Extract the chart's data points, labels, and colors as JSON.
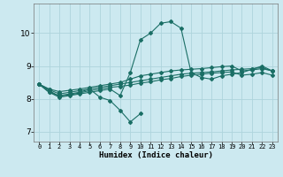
{
  "title": "",
  "xlabel": "Humidex (Indice chaleur)",
  "ylabel": "",
  "bg_color": "#cce9f0",
  "grid_color": "#aed4dc",
  "line_color": "#1a6e65",
  "xlim": [
    -0.5,
    23.5
  ],
  "ylim": [
    6.7,
    10.9
  ],
  "yticks": [
    7,
    8,
    9,
    10
  ],
  "xticks": [
    0,
    1,
    2,
    3,
    4,
    5,
    6,
    7,
    8,
    9,
    10,
    11,
    12,
    13,
    14,
    15,
    16,
    17,
    18,
    19,
    20,
    21,
    22,
    23
  ],
  "series": [
    [
      8.45,
      8.2,
      8.05,
      8.1,
      8.15,
      8.2,
      8.25,
      8.3,
      8.1,
      8.8,
      9.8,
      10.0,
      10.3,
      10.35,
      10.15,
      8.8,
      8.65,
      8.6,
      8.7,
      8.75,
      8.8,
      8.9,
      9.0,
      8.85
    ],
    [
      8.45,
      8.2,
      8.1,
      8.15,
      8.2,
      8.3,
      8.05,
      7.95,
      7.65,
      7.3,
      7.55,
      null,
      null,
      null,
      null,
      null,
      null,
      null,
      null,
      null,
      null,
      null,
      null,
      null
    ],
    [
      8.45,
      8.3,
      8.22,
      8.26,
      8.3,
      8.35,
      8.4,
      8.45,
      8.5,
      8.6,
      8.7,
      8.75,
      8.8,
      8.85,
      8.88,
      8.9,
      8.92,
      8.95,
      8.98,
      9.0,
      8.85,
      8.88,
      8.92,
      8.85
    ],
    [
      8.45,
      8.28,
      8.15,
      8.2,
      8.25,
      8.3,
      8.35,
      8.4,
      8.45,
      8.5,
      8.55,
      8.6,
      8.65,
      8.7,
      8.75,
      8.78,
      8.8,
      8.82,
      8.85,
      8.88,
      8.9,
      8.92,
      8.95,
      8.85
    ],
    [
      8.45,
      8.25,
      8.08,
      8.12,
      8.18,
      8.25,
      8.3,
      8.35,
      8.38,
      8.42,
      8.48,
      8.52,
      8.58,
      8.62,
      8.68,
      8.72,
      8.75,
      8.78,
      8.8,
      8.82,
      8.72,
      8.75,
      8.8,
      8.72
    ]
  ],
  "marker": "D",
  "markersize": 2.0,
  "linewidth": 0.8,
  "tick_fontsize": 5.0,
  "xlabel_fontsize": 6.5
}
